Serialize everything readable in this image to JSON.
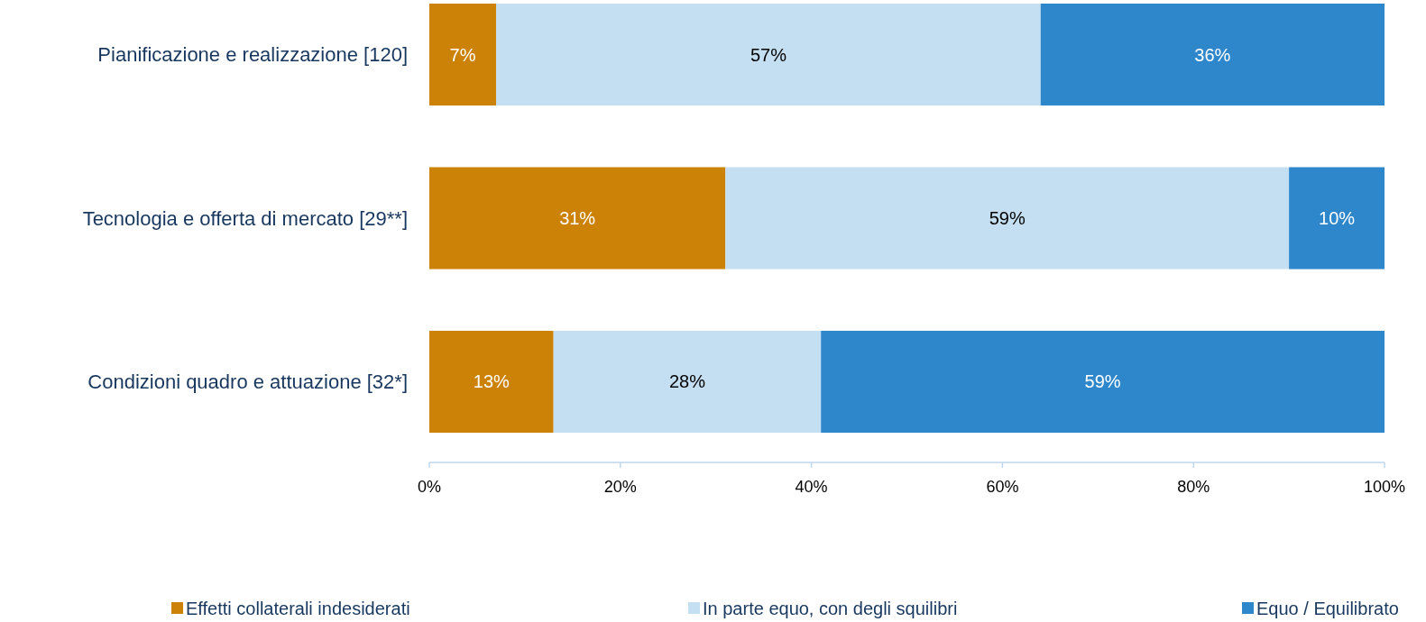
{
  "chart_data": {
    "type": "bar",
    "orientation": "horizontal",
    "stacked": true,
    "categories": [
      "Pianificazione e realizzazione [120]",
      "Tecnologia e offerta di mercato [29**]",
      "Condizioni quadro e attuazione [32*]"
    ],
    "series": [
      {
        "name": "Effetti collaterali indesiderati",
        "color": "#cc8206",
        "values": [
          7,
          31,
          13
        ],
        "value_labels": [
          "7%",
          "31%",
          "13%"
        ]
      },
      {
        "name": "In parte equo, con degli squilibri",
        "color": "#c5dff2",
        "values": [
          57,
          59,
          28
        ],
        "value_labels": [
          "57%",
          "59%",
          "28%"
        ]
      },
      {
        "name": "Equo / Equilibrato",
        "color": "#2e86cb",
        "values": [
          36,
          10,
          59
        ],
        "value_labels": [
          "36%",
          "10%",
          "59%"
        ]
      }
    ],
    "xlim": [
      0,
      100
    ],
    "xticks": [
      {
        "value": 0,
        "label": "0%"
      },
      {
        "value": 20,
        "label": "20%"
      },
      {
        "value": 40,
        "label": "40%"
      },
      {
        "value": 60,
        "label": "60%"
      },
      {
        "value": 80,
        "label": "80%"
      },
      {
        "value": 100,
        "label": "100%"
      }
    ],
    "grid": false,
    "legend": "bottom"
  }
}
